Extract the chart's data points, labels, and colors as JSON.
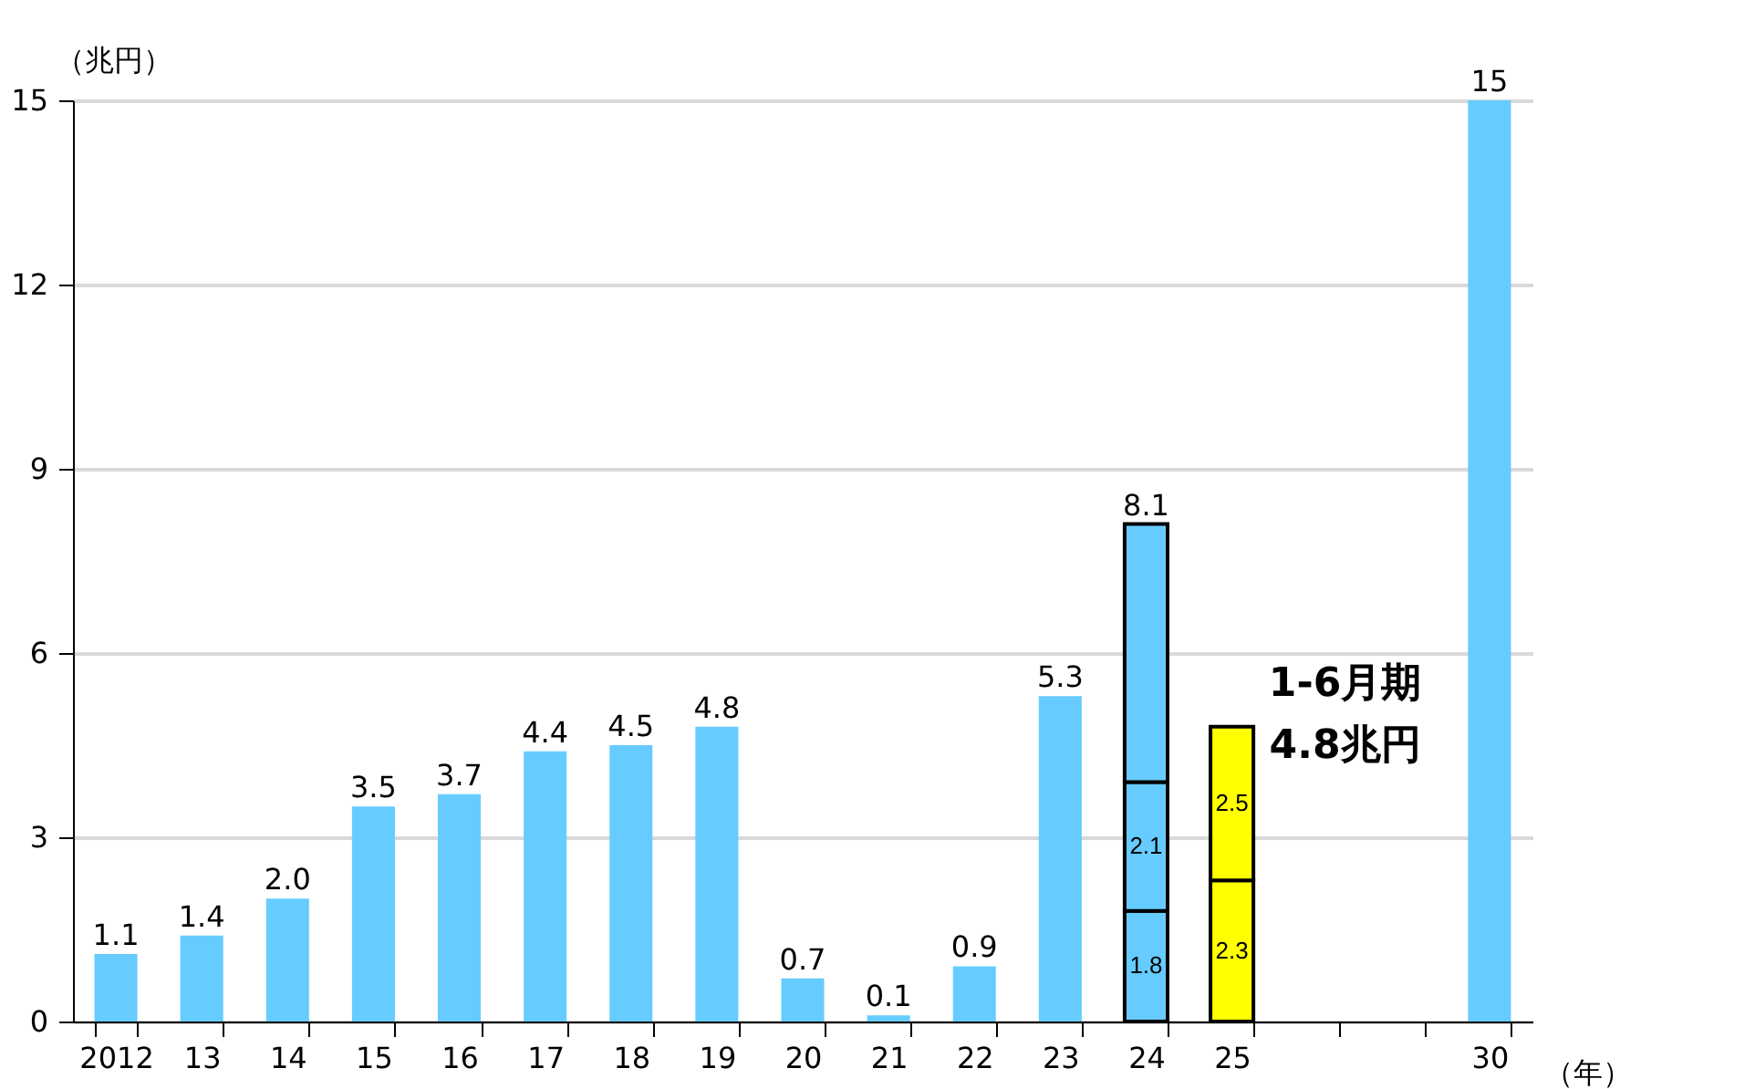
{
  "chart_data": {
    "type": "bar",
    "stacked": true,
    "categories": [
      "2012",
      "13",
      "14",
      "15",
      "16",
      "17",
      "18",
      "19",
      "20",
      "21",
      "22",
      "23",
      "24",
      "25",
      null,
      null,
      "30"
    ],
    "series": [
      {
        "color": "#66ccff",
        "values": [
          1.1,
          1.4,
          2.0,
          3.5,
          3.7,
          4.4,
          4.5,
          4.8,
          0.7,
          0.1,
          0.9,
          5.3,
          1.8,
          null,
          null,
          null,
          15
        ],
        "value_labels": [
          "1.1",
          "1.4",
          "2.0",
          "3.5",
          "3.7",
          "4.4",
          "4.5",
          "4.8",
          "0.7",
          "0.1",
          "0.9",
          "5.3",
          "1.8",
          null,
          null,
          null,
          "15"
        ]
      },
      {
        "color": "#66ccff",
        "values": [
          null,
          null,
          null,
          null,
          null,
          null,
          null,
          null,
          null,
          null,
          null,
          null,
          2.1,
          null,
          null,
          null,
          null
        ],
        "value_labels": [
          null,
          null,
          null,
          null,
          null,
          null,
          null,
          null,
          null,
          null,
          null,
          null,
          "2.1",
          null,
          null,
          null,
          null
        ]
      },
      {
        "color": "#66ccff",
        "values": [
          null,
          null,
          null,
          null,
          null,
          null,
          null,
          null,
          null,
          null,
          null,
          null,
          4.2,
          null,
          null,
          null,
          null
        ]
      },
      {
        "color": "#ffff00",
        "values": [
          null,
          null,
          null,
          null,
          null,
          null,
          null,
          null,
          null,
          null,
          null,
          null,
          null,
          2.3,
          null,
          null,
          null
        ],
        "value_labels": [
          null,
          null,
          null,
          null,
          null,
          null,
          null,
          null,
          null,
          null,
          null,
          null,
          null,
          "2.3",
          null,
          null,
          null
        ]
      },
      {
        "color": "#ffff00",
        "values": [
          null,
          null,
          null,
          null,
          null,
          null,
          null,
          null,
          null,
          null,
          null,
          null,
          null,
          2.5,
          null,
          null,
          null
        ],
        "value_labels": [
          null,
          null,
          null,
          null,
          null,
          null,
          null,
          null,
          null,
          null,
          null,
          null,
          null,
          "2.5",
          null,
          null,
          null
        ]
      }
    ],
    "totals": [
      null,
      null,
      null,
      null,
      null,
      null,
      null,
      null,
      null,
      null,
      null,
      null,
      "8.1",
      null,
      null,
      null,
      null
    ],
    "ylabel": "（兆円）",
    "xlabel": "（年）",
    "ylim": [
      0,
      15
    ],
    "yticks": [
      0,
      3,
      6,
      9,
      12,
      15
    ],
    "grid": "y",
    "annotations": [
      {
        "text": "1-6月期\n4.8兆円",
        "x": "25",
        "y": 4.8
      }
    ]
  }
}
